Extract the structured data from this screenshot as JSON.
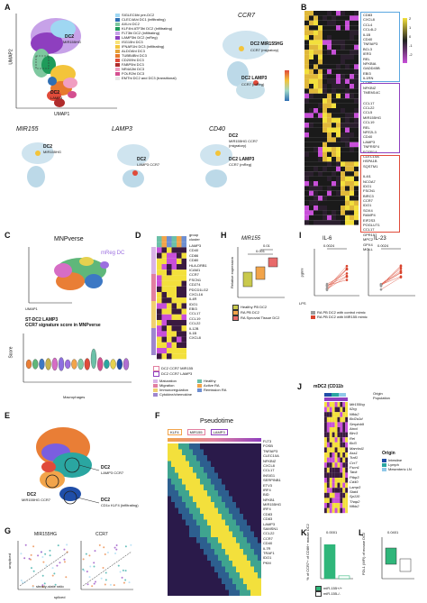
{
  "panels": {
    "A": "A",
    "B": "B",
    "C": "C",
    "D": "D",
    "E": "E",
    "F": "F",
    "G": "G",
    "H": "H",
    "I": "I",
    "J": "J",
    "K": "K",
    "L": "L"
  },
  "panelA": {
    "umap2": "UMAP2",
    "umap1": "UMAP1",
    "dc2_top": "DC2",
    "dc2_top_sub": "MIR155HG",
    "dc2_mid": "DC2",
    "dc2_mid_sub": "LAMP3",
    "legend": [
      {
        "label": "SIGLEC6hi pre-DC2",
        "color": "#9fd7f2"
      },
      {
        "label": "CLEC4Ahi DC1 (infiltrating)",
        "color": "#2f6fb3"
      },
      {
        "label": "AXLhi DC2",
        "color": "#7ec8a0"
      },
      {
        "label": "KLF4hi ATF3hi DC2 (infiltrating)",
        "color": "#1e9b5a"
      },
      {
        "label": "FLT3hi DC2 (infiltrating)",
        "color": "#c7a2e8"
      },
      {
        "label": "LAMP3hi DC2 (mReg)",
        "color": "#8e3fbf"
      },
      {
        "label": "ISG15hi DC3",
        "color": "#f8e37b"
      },
      {
        "label": "IFNAR1hi DC3 (infiltrating)",
        "color": "#f3c43b"
      },
      {
        "label": "ALDOAhi DC3",
        "color": "#e5a33a"
      },
      {
        "label": "TUBB4Bhi DC3",
        "color": "#e7792d"
      },
      {
        "label": "CD209hi DC3",
        "color": "#e04b3a"
      },
      {
        "label": "FABP5hi DC3",
        "color": "#b02c2c"
      },
      {
        "label": "NR4A3hi DC3",
        "color": "#f19ec1"
      },
      {
        "label": "FOLR2hi DC3",
        "color": "#d44f90"
      },
      {
        "label": "EMThi DC2 and DC3 (transitional)",
        "color": "#e6e6e6"
      }
    ],
    "ccr7_title": "CCR7",
    "ccr7_dc2a": "DC2 MIR155HG",
    "ccr7_dc2a_sub": "CCR7 (migratory)",
    "ccr7_dc2b": "DC2 LAMP3",
    "ccr7_dc2b_sub": "CCR7 (mReg)",
    "scale": [
      "150",
      "100",
      "50",
      "0.25",
      "0"
    ],
    "mir155_title": "MIR155",
    "lamp3_title": "LAMP3",
    "cd40_title": "CD40",
    "mir_dc2": "DC2",
    "mir_dc2_sub": "MIR155HG",
    "lamp_dc2": "DC2",
    "lamp_dc2_sub": "LAMP3 CCR7",
    "cd40_dc2a": "DC2",
    "cd40_dc2a_sub": "MIR155HG CCR7 (migratory)",
    "cd40_dc2b": "DC2 LAMP3",
    "cd40_dc2b_sub": "CCR7 (mReg)",
    "xticks": [
      "-5",
      "0",
      "5",
      "10"
    ],
    "yticks": [
      "10",
      "5",
      "0",
      "-5",
      "-10"
    ]
  },
  "panelB": {
    "genes_top": [
      "CD83",
      "CXCL8",
      "CCL4",
      "CCL4L2",
      "IL1B",
      "CD40",
      "TNFAIP3",
      "BCL3",
      "IER3",
      "REL",
      "NFKBIA",
      "GADD45B",
      "EBI3",
      "IL1RN",
      "CD86",
      "NFKBIZ",
      "TMEM14C"
    ],
    "genes_mid": [
      "CCL17",
      "CCL22",
      "CCL5",
      "MIR155HG",
      "CCL19",
      "REL",
      "NFE2L3",
      "CD40",
      "LAMP3",
      "TNFRSF4",
      "FCER1A",
      "CLEC10A",
      "HSPA1B",
      "SQSTM1"
    ],
    "genes_bot": [
      "IL4I1",
      "NCOA7",
      "IDO1",
      "FSCN1",
      "BIRC3",
      "CCR7",
      "IDO1",
      "SOX4",
      "RAMP4",
      "EIF2S3",
      "POGLUT1",
      "CCL17",
      "GPR157",
      "MPC2",
      "GPX4",
      "MGLL"
    ],
    "scale": [
      "2",
      "1",
      "0",
      "-1",
      "-2"
    ]
  },
  "panelC": {
    "title": "MNPverse",
    "mreg": "mReg DC",
    "umap2": "UMAP2",
    "umap1": "UMAP1",
    "sig_title1": "ST-DC2 LAMP3",
    "sig_title2": "CCR7 signature score in MNPverse",
    "score": "Score",
    "xlabels": [
      "Monocytes",
      "cDC1",
      "cDC2",
      "Macrophages",
      "mRegDC",
      "pDC",
      "Prolif. DC",
      "Mast cells"
    ],
    "yticks": [
      "1.0",
      "0.5",
      "0.0",
      "-0.5",
      "-1.0"
    ],
    "macrophages": "Macrophages"
  },
  "panelD": {
    "genes": [
      "LAMP3",
      "CD40",
      "CD86",
      "CD80",
      "HLA-DRB1",
      "ICAM1",
      "CCR7",
      "FSCN1",
      "CD274",
      "PDCD1LG2",
      "CXCL16",
      "IL4R",
      "IDO1",
      "EBI3",
      "CCL17",
      "CCL19",
      "CCL22",
      "IL12B",
      "IL1B",
      "CXCL8"
    ],
    "hdr1": "group",
    "hdr2": "cluster",
    "legend_top": [
      "DC2 CCR7 MIR155",
      "DC2 CCR7 LAMP3"
    ],
    "pathway_label": "Pathway",
    "pathways": [
      {
        "label": "Maturation",
        "color": "#d9b3e6"
      },
      {
        "label": "Migration",
        "color": "#e27fa0"
      },
      {
        "label": "Immunoregulation",
        "color": "#f0d070"
      },
      {
        "label": "Cytokine/chemokine",
        "color": "#9e86cf"
      }
    ],
    "groups": [
      {
        "label": "Healthy",
        "color": "#6cc0a8"
      },
      {
        "label": "Active RA",
        "color": "#f2a44a"
      },
      {
        "label": "Remission RA",
        "color": "#6e8fd1"
      }
    ]
  },
  "panelE": {
    "dc2a": "DC2",
    "dc2a_sub": "MIR155HG CCR7",
    "dc2b": "DC2",
    "dc2b_sub": "LAMP3 CCR7",
    "dc2c": "DC2",
    "dc2c_sub": "CD1c KLF4 (infiltrating)"
  },
  "panelF": {
    "title": "Pseudotime",
    "tags": [
      "KLF4",
      "MIR155",
      "LAMP3"
    ],
    "genes": [
      "FLT3",
      "FOSB",
      "TNFAIP3",
      "CLEC10A",
      "NFKBIZ",
      "CXCL8",
      "CCL17",
      "INSIG1",
      "SERPINB1",
      "ETV3",
      "IRF4",
      "BID",
      "NFKB1",
      "MIR155HG",
      "IRF4",
      "CD83",
      "CD83",
      "LAMP3",
      "SAMSN1",
      "CCL22",
      "CCR7",
      "CD40",
      "IL7R",
      "TRAF1",
      "IDO1",
      "PKM"
    ]
  },
  "panelG": {
    "t1": "MIR155HG",
    "t2": "CCR7",
    "ylab": "unspliced",
    "xlab": "spliced",
    "note": "steady-state ratio"
  },
  "panelH": {
    "title": "MIR155",
    "ylab": "Relative expression",
    "p1": "0.001",
    "p2": "0.01",
    "yticks": [
      "1,000",
      "100",
      "10",
      "1",
      "0.1"
    ],
    "legend": [
      {
        "label": "Healthy PB DC2",
        "color": "#c9c94c"
      },
      {
        "label": "RA PB DC2",
        "color": "#f2a44a"
      },
      {
        "label": "RA Synovial Tissue DC2",
        "color": "#e86a6a"
      }
    ]
  },
  "panelI": {
    "t1": "IL-6",
    "t2": "IL-23",
    "ylab": "pg/ml",
    "p1": "0.0024",
    "p2": "0.0024",
    "lps": "LPS",
    "minus": "−",
    "plus": "+",
    "yticks": [
      "3000",
      "2000",
      "1000",
      "0"
    ],
    "yticks2": [
      "400",
      "300",
      "200",
      "100",
      "0"
    ],
    "legend": [
      {
        "label": "RA PB DC2 with control mimic",
        "color": "#9a9a9a"
      },
      {
        "label": "RA PB DC2 with MIR155 mimic",
        "color": "#d9432d"
      }
    ]
  },
  "panelJ": {
    "title": "mDC2 (CD11b",
    "hdr1": "Origin",
    "hdr2": "Population",
    "genes": [
      "Mir155hg",
      "Il2rg",
      "Nfkb2",
      "Bcl2a1d",
      "Serpinb9",
      "Atoxl",
      "Birc3",
      "Rel",
      "Bcl3",
      "Marcksl1",
      "Ass1",
      "Traf1",
      "Ccr7",
      "Fscn1",
      "Tank",
      "Ptbp3",
      "Cd40",
      "Lamp3",
      "Stat4",
      "Sp110",
      "Thap2",
      "Nfkb2"
    ],
    "origin_title": "Origin",
    "origins": [
      {
        "label": "Intestine",
        "color": "#1f4ea8"
      },
      {
        "label": "Lymph",
        "color": "#2aa6a1"
      },
      {
        "label": "Mesenteric LN",
        "color": "#8fc8e8"
      }
    ]
  },
  "panelK": {
    "ylab": "% of CCR7+ of CD86+ mouse DC2",
    "p": "0.0001",
    "yticks": [
      "60",
      "40",
      "20",
      "0"
    ],
    "values": {
      "wt": 60,
      "ko": 5
    }
  },
  "panelL": {
    "ylab": "PDL1 (MFI) of mouse DC2",
    "p": "0.0401",
    "yticks": [
      "1,500",
      "1,000",
      "500",
      "0"
    ],
    "legend": [
      {
        "label": "miR-155+/+",
        "color": "#2fb67a"
      },
      {
        "label": "miR-155-/-",
        "color": "#ffffff"
      }
    ]
  }
}
